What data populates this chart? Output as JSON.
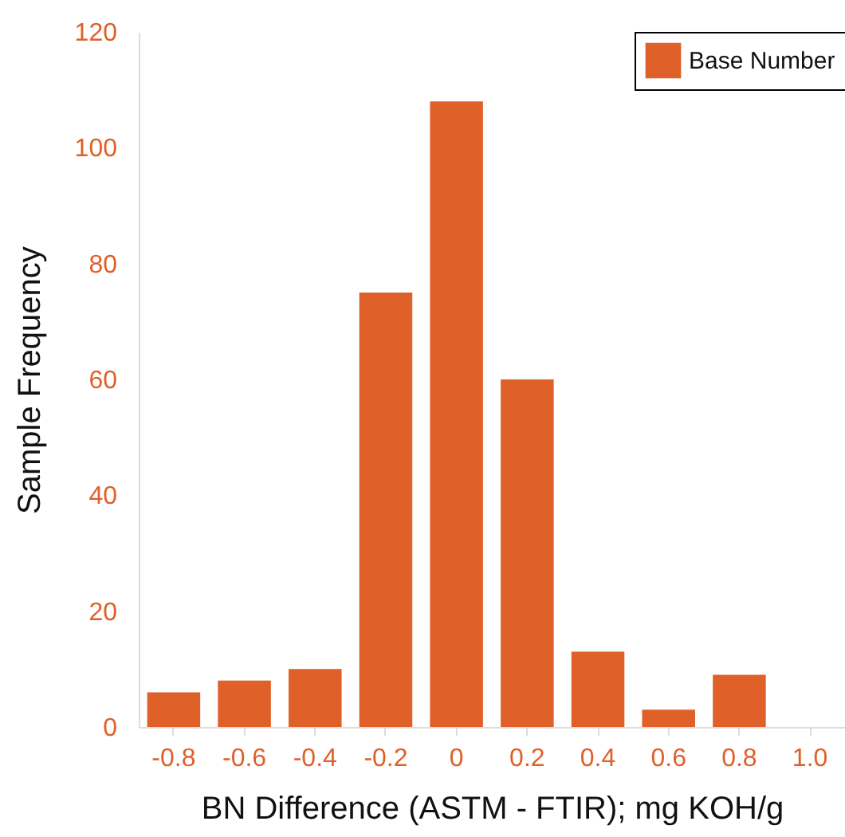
{
  "chart_data": {
    "type": "bar",
    "xlabel": "BN Difference (ASTM - FTIR); mg KOH/g",
    "ylabel": "Sample Frequency",
    "categories": [
      "-0.8",
      "-0.6",
      "-0.4",
      "-0.2",
      "0",
      "0.2",
      "0.4",
      "0.6",
      "0.8",
      "1.0"
    ],
    "series": [
      {
        "name": "Base Number",
        "color": "#e0602a",
        "values": [
          6,
          8,
          10,
          75,
          108,
          60,
          13,
          3,
          9,
          0
        ]
      }
    ],
    "ylim": [
      0,
      120
    ],
    "yticks": [
      0,
      20,
      40,
      60,
      80,
      100,
      120
    ],
    "grid": false,
    "legend": "top right"
  }
}
